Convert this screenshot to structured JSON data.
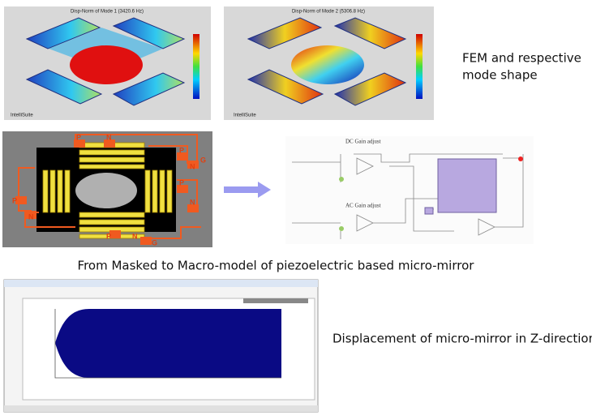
{
  "fem": {
    "mode1": {
      "title": "Disp-Norm of Mode 1 (3420.6 Hz)",
      "brand": "IntelliSuite"
    },
    "mode2": {
      "title": "Disp-Norm of Mode 2 (5306.8 Hz)",
      "brand": "IntelliSuite"
    },
    "caption": [
      "FEM and respective",
      "mode shape"
    ]
  },
  "mask": {
    "labels": [
      "P",
      "N",
      "P",
      "N",
      "G",
      "P",
      "N",
      "P",
      "N",
      "P",
      "N",
      "G"
    ]
  },
  "circuit": {
    "dc_label": "DC Gain adjust",
    "ac_label": "AC Gain adjust"
  },
  "macro_caption": "From Masked to Macro-model of piezoelectric based micro-mirror",
  "simulation": {
    "caption": "Displacement of micro-mirror in Z-direction"
  }
}
